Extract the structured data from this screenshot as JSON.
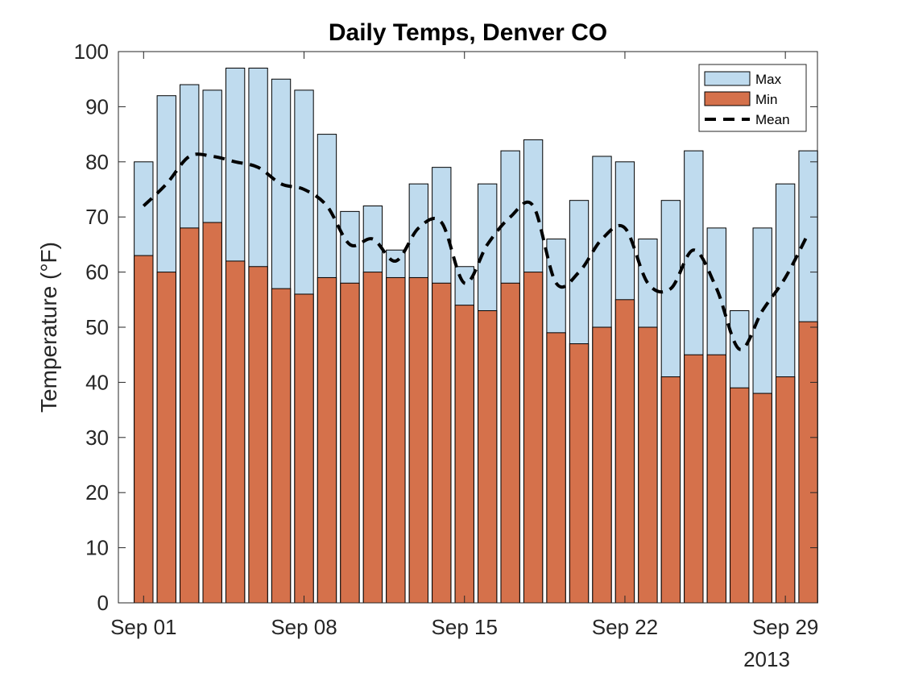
{
  "chart_data": {
    "type": "bar",
    "title": "Daily Temps, Denver CO",
    "xlabel": "",
    "ylabel": "Temperature (°F)",
    "ylim": [
      0,
      100
    ],
    "yticks": [
      0,
      10,
      20,
      30,
      40,
      50,
      60,
      70,
      80,
      90,
      100
    ],
    "x_dates": [
      "2013-09-01",
      "2013-09-02",
      "2013-09-03",
      "2013-09-04",
      "2013-09-05",
      "2013-09-06",
      "2013-09-07",
      "2013-09-08",
      "2013-09-09",
      "2013-09-10",
      "2013-09-11",
      "2013-09-12",
      "2013-09-13",
      "2013-09-14",
      "2013-09-15",
      "2013-09-16",
      "2013-09-17",
      "2013-09-18",
      "2013-09-19",
      "2013-09-20",
      "2013-09-21",
      "2013-09-22",
      "2013-09-23",
      "2013-09-24",
      "2013-09-25",
      "2013-09-26",
      "2013-09-27",
      "2013-09-28",
      "2013-09-29",
      "2013-09-30"
    ],
    "xtick_labels": [
      {
        "date": "2013-09-01",
        "label": "Sep 01"
      },
      {
        "date": "2013-09-08",
        "label": "Sep 08"
      },
      {
        "date": "2013-09-15",
        "label": "Sep 15"
      },
      {
        "date": "2013-09-22",
        "label": "Sep 22"
      },
      {
        "date": "2013-09-29",
        "label": "Sep 29"
      }
    ],
    "xaxis_secondary_label": "2013",
    "series": [
      {
        "name": "Max",
        "type": "bar",
        "color": "#bfdbee",
        "values": [
          80,
          92,
          94,
          93,
          97,
          97,
          95,
          93,
          85,
          71,
          72,
          64,
          76,
          79,
          61,
          76,
          82,
          84,
          66,
          73,
          81,
          80,
          66,
          73,
          82,
          68,
          53,
          68,
          76,
          82
        ]
      },
      {
        "name": "Min",
        "type": "bar",
        "color": "#d5714b",
        "values": [
          63,
          60,
          68,
          69,
          62,
          61,
          57,
          56,
          59,
          58,
          60,
          59,
          59,
          58,
          54,
          53,
          58,
          60,
          49,
          47,
          50,
          55,
          50,
          41,
          45,
          45,
          39,
          38,
          41,
          51
        ]
      },
      {
        "name": "Mean",
        "type": "line",
        "style": "dashed",
        "color": "#000000",
        "values": [
          72,
          76,
          81,
          81,
          80,
          79,
          76,
          75,
          72,
          65,
          66,
          62,
          68,
          69,
          58,
          65,
          70,
          72,
          58,
          60,
          66,
          68,
          58,
          57,
          64,
          57,
          46,
          53,
          59,
          67
        ]
      }
    ],
    "legend": {
      "placement": "top-right",
      "entries": [
        "Max",
        "Min",
        "Mean"
      ]
    },
    "grid": false
  }
}
